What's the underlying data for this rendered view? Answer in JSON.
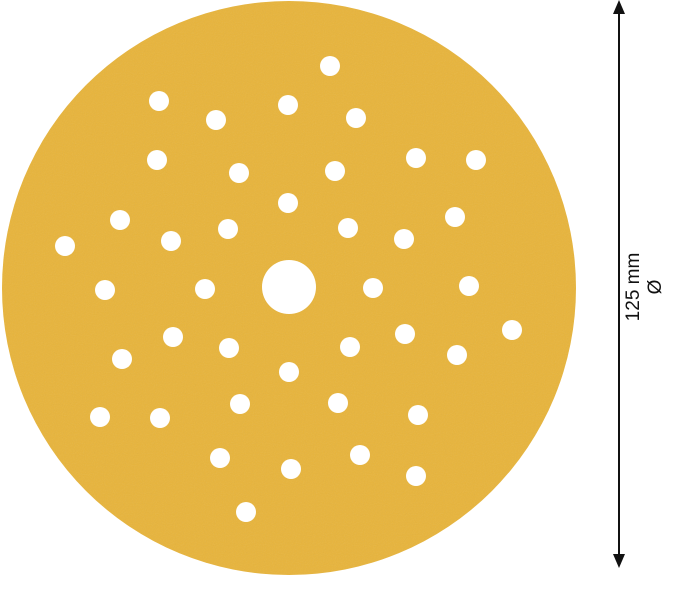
{
  "product": {
    "disc_color": "#e8b43a",
    "hole_color": "#ffffff",
    "hole_count": 41
  },
  "dimension": {
    "value": "125 mm",
    "symbol": "Ø"
  }
}
